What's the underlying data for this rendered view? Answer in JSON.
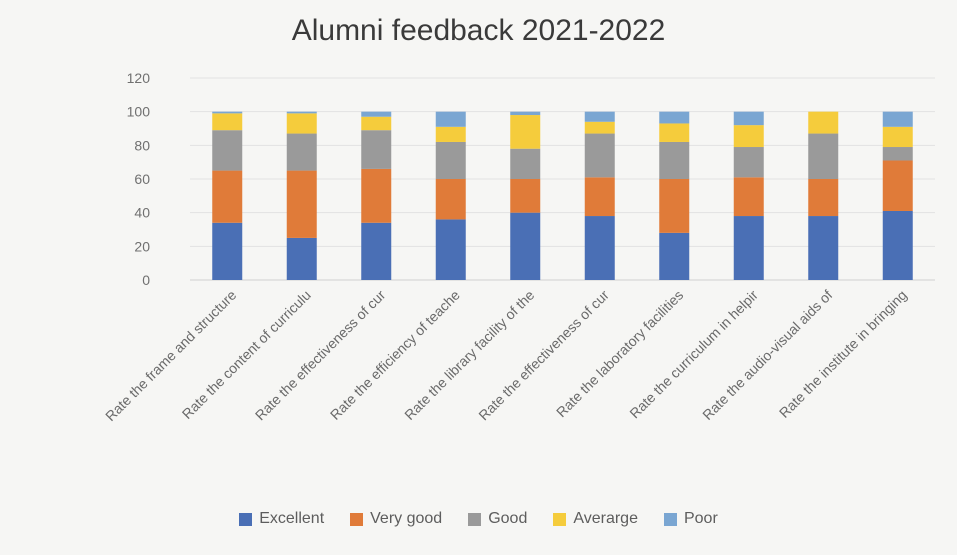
{
  "chart_data": {
    "type": "bar",
    "stacked": true,
    "title": "Alumni feedback 2021-2022",
    "xlabel": "",
    "ylabel": "",
    "ylim": [
      0,
      120
    ],
    "yticks": [
      0,
      20,
      40,
      60,
      80,
      100,
      120
    ],
    "grid": true,
    "legend_position": "bottom",
    "categories": [
      "Rate the frame and structure",
      "Rate the content of curriculu",
      "Rate the effectiveness of cur",
      "Rate the efficiency of teache",
      "Rate the library facility of the",
      "Rate the effectiveness of cur",
      "Rate the laboratory facilities",
      "Rate the curriculum in helpir",
      "Rate the audio-visual aids of",
      "Rate the institute in bringing"
    ],
    "series": [
      {
        "name": "Excellent",
        "color": "#4a6fb5",
        "values": [
          34,
          25,
          34,
          36,
          40,
          38,
          28,
          38,
          38,
          41
        ]
      },
      {
        "name": "Very good",
        "color": "#e07b39",
        "values": [
          31,
          40,
          32,
          24,
          20,
          23,
          32,
          23,
          22,
          30
        ]
      },
      {
        "name": "Good",
        "color": "#9a9a9a",
        "values": [
          24,
          22,
          23,
          22,
          18,
          26,
          22,
          18,
          27,
          8
        ]
      },
      {
        "name": "Averarge",
        "color": "#f5cc3c",
        "values": [
          10,
          12,
          8,
          9,
          20,
          7,
          11,
          13,
          13,
          12
        ]
      },
      {
        "name": "Poor",
        "color": "#7aa6d2",
        "values": [
          1,
          1,
          3,
          9,
          2,
          6,
          7,
          8,
          0,
          9
        ]
      }
    ]
  }
}
